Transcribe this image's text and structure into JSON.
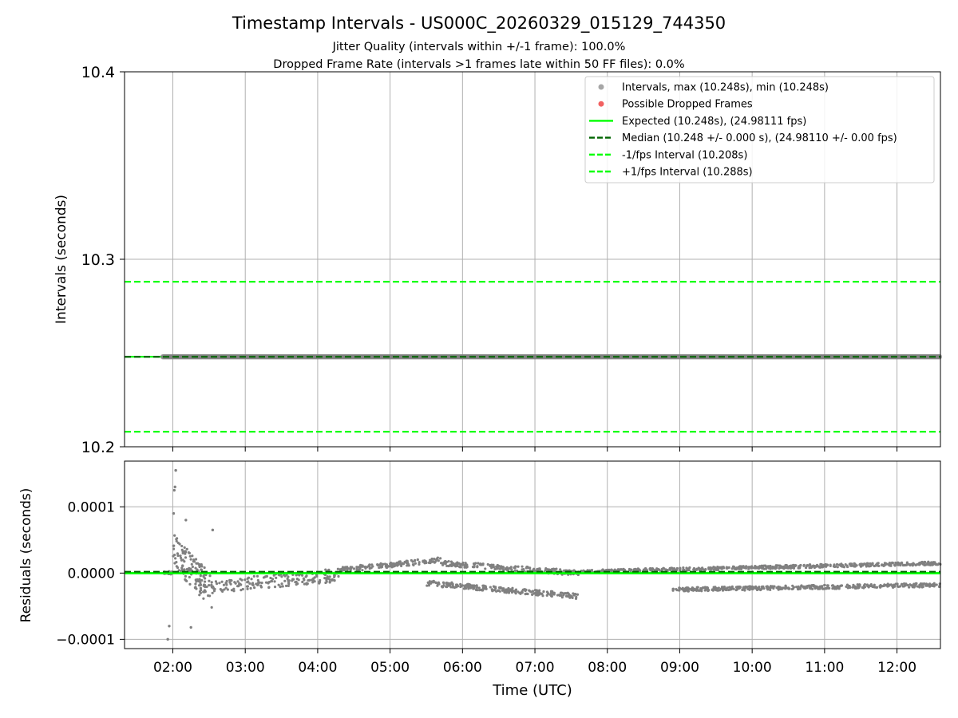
{
  "chart_data": [
    {
      "type": "scatter",
      "title": "Timestamp Intervals - US000C_20260329_015129_744350",
      "subtitle_1": "Jitter Quality (intervals within +/-1 frame): 100.0%",
      "subtitle_2": "Dropped Frame Rate (intervals >1 frames late within 50 FF files): 0.0%",
      "xlabel": "",
      "ylabel": "Intervals (seconds)",
      "ylim": [
        10.2,
        10.4
      ],
      "y_ticks": [
        10.2,
        10.3,
        10.4
      ],
      "y_tick_labels": [
        "10.2",
        "10.3",
        "10.4"
      ],
      "xlim_hours": [
        1.333,
        12.6
      ],
      "grid": true,
      "series": [
        {
          "name": "Intervals",
          "kind": "scatter",
          "color": "#808080",
          "x_start_hours": 1.86,
          "x_end_hours": 12.6,
          "value": 10.248
        },
        {
          "name": "Possible Dropped Frames",
          "kind": "scatter",
          "color": "#ff4d4d",
          "points": []
        }
      ],
      "hlines": [
        {
          "name": "Expected",
          "value": 10.248,
          "color": "#00ff00",
          "style": "solid"
        },
        {
          "name": "Median",
          "value": 10.248,
          "color": "#006400",
          "style": "dashed"
        },
        {
          "name": "-1/fps Interval",
          "value": 10.208,
          "color": "#00ff00",
          "style": "dashed"
        },
        {
          "name": "+1/fps Interval",
          "value": 10.288,
          "color": "#00ff00",
          "style": "dashed"
        }
      ],
      "legend": {
        "position": "upper-right",
        "entries": [
          {
            "label": "Intervals, max (10.248s), min (10.248s)",
            "marker": "dot",
            "color": "#a6a6a6"
          },
          {
            "label": "Possible Dropped Frames",
            "marker": "dot",
            "color": "#f26161"
          },
          {
            "label": "Expected (10.248s), (24.98111 fps)",
            "marker": "line",
            "color": "#00ff00",
            "style": "solid"
          },
          {
            "label": "Median (10.248 +/- 0.000 s), (24.98110 +/- 0.00 fps)",
            "marker": "line",
            "color": "#006400",
            "style": "dashed"
          },
          {
            "label": "-1/fps Interval (10.208s)",
            "marker": "line",
            "color": "#00ff00",
            "style": "dashed"
          },
          {
            "label": "+1/fps Interval (10.288s)",
            "marker": "line",
            "color": "#00ff00",
            "style": "dashed"
          }
        ]
      }
    },
    {
      "type": "scatter",
      "xlabel": "Time (UTC)",
      "ylabel": "Residuals (seconds)",
      "ylim": [
        -0.000114,
        0.000169
      ],
      "y_ticks": [
        -0.0001,
        0.0,
        0.0001
      ],
      "y_tick_labels": [
        "−0.0001",
        "0.0000",
        "0.0001"
      ],
      "xlim_hours": [
        1.333,
        12.6
      ],
      "x_ticks_hours": [
        2,
        3,
        4,
        5,
        6,
        7,
        8,
        9,
        10,
        11,
        12
      ],
      "x_tick_labels": [
        "02:00",
        "03:00",
        "04:00",
        "05:00",
        "06:00",
        "07:00",
        "08:00",
        "09:00",
        "10:00",
        "11:00",
        "12:00"
      ],
      "grid": true,
      "hlines": [
        {
          "name": "Expected",
          "value": 0.0,
          "color": "#00ff00",
          "style": "solid"
        },
        {
          "name": "Median",
          "value": 2e-06,
          "color": "#006400",
          "style": "dashed"
        }
      ],
      "series": [
        {
          "name": "Residuals",
          "color": "#808080",
          "description": "Residual trend bands (hours, seconds) used to render the scatter",
          "bands": [
            {
              "x": [
                1.86,
                2.0
              ],
              "y_main": [
                0.0,
                0.0
              ],
              "spread": 2.5e-06
            },
            {
              "x": [
                2.0,
                2.55
              ],
              "y_main": [
                3.5e-05,
                -3e-05
              ],
              "spread": 2.5e-05
            },
            {
              "x": [
                2.55,
                4.3
              ],
              "y_main": [
                -2e-05,
                -3e-06
              ],
              "spread": 1e-05
            },
            {
              "x": [
                4.3,
                5.7
              ],
              "y_main": [
                5e-06,
                2e-05
              ],
              "spread": 4e-06
            },
            {
              "x": [
                5.7,
                7.6
              ],
              "y_main": [
                1.5e-05,
                0.0
              ],
              "spread": 4e-06
            },
            {
              "x": [
                5.5,
                7.6
              ],
              "y_main": [
                -1.5e-05,
                -3.5e-05
              ],
              "spread": 4e-06
            },
            {
              "x": [
                7.6,
                12.6
              ],
              "y_main": [
                2e-06,
                1.5e-05
              ],
              "spread": 2.5e-06
            },
            {
              "x": [
                8.9,
                12.6
              ],
              "y_main": [
                -2.5e-05,
                -1.8e-05
              ],
              "spread": 3e-06
            }
          ],
          "extremes": [
            {
              "x_hours": 2.04,
              "y": 0.000155
            },
            {
              "x_hours": 2.03,
              "y": 0.00013
            },
            {
              "x_hours": 2.02,
              "y": 0.000125
            },
            {
              "x_hours": 2.01,
              "y": 9e-05
            },
            {
              "x_hours": 2.18,
              "y": 8e-05
            },
            {
              "x_hours": 2.55,
              "y": 6.5e-05
            },
            {
              "x_hours": 1.93,
              "y": -0.0001
            },
            {
              "x_hours": 1.95,
              "y": -8e-05
            },
            {
              "x_hours": 2.25,
              "y": -8.2e-05
            }
          ]
        }
      ]
    }
  ]
}
